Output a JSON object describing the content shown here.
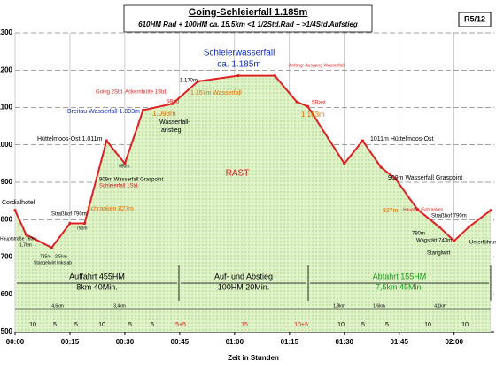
{
  "chart_data": {
    "type": "line",
    "title": "Going-Schleierfall 1.185m",
    "subtitle": "610HM Rad + 100HM   ca. 15,5km     <1 1/2Std.Rad + >1/4Std.Aufstieg",
    "badge": "R5/12",
    "x_label": "Zeit in Stunden",
    "x": [
      0,
      3,
      10,
      15,
      19,
      25,
      30,
      35,
      43,
      50,
      61,
      71,
      77,
      80,
      90,
      95,
      100,
      104,
      110,
      116,
      120,
      124,
      130
    ],
    "series": [
      {
        "color": "#e02020",
        "values": [
          825,
          760,
          725,
          790,
          790,
          1011,
          950,
          1093,
          1110,
          1170,
          1185,
          1185,
          1115,
          1103,
          950,
          1011,
          940,
          909,
          827,
          780,
          743,
          780,
          825
        ]
      }
    ],
    "fill_color": "#dff2c8",
    "xlim": [
      0,
      130
    ],
    "xticks": [
      {
        "value": 0,
        "label": "00:00"
      },
      {
        "value": 15,
        "label": "00:15"
      },
      {
        "value": 30,
        "label": "00:30"
      },
      {
        "value": 45,
        "label": "00:45"
      },
      {
        "value": 60,
        "label": "01:00"
      },
      {
        "value": 75,
        "label": "01:15"
      },
      {
        "value": 90,
        "label": "01:30"
      },
      {
        "value": 105,
        "label": "01:45"
      },
      {
        "value": 120,
        "label": "02:00"
      }
    ],
    "ylim": [
      500,
      1300
    ],
    "yticks": [
      500,
      600,
      700,
      800,
      900,
      1000,
      1100,
      1200,
      1300
    ],
    "grid": true,
    "annotations": [
      "Cordialhotel",
      "Hauptstraße 760m",
      "1,7km",
      "725m",
      "2,5km",
      "Stangelwirt links ab",
      "Straßhof 790m",
      "790m",
      "Schranken 827m",
      "Hüttelmoos-Ost 1.011m",
      "950m",
      "909m Wasserfall  Graspoint",
      "Schleierfall 1Std.",
      "Breitau Wasserfall 1.093m",
      "1.093m",
      "Wasserfall-",
      "anstieg",
      "5Rad",
      "Going 2Std.  Ackernhütte 1Std.",
      "1.170m",
      "1.157m Wasserfall",
      "Schleierwasserfall",
      "ca. 1.185m",
      "Anfang: Ausgang Wasserfall",
      "5Rast",
      "1.183m",
      "1011m Hüttelmoos-Ost",
      "909m Wasserfall Graspoint",
      "827m",
      "Hauptstr./Schranken",
      "Straßhof 790m",
      "780m",
      "Wagstätt 743m",
      "Stanglwirt",
      "Unterführung",
      "RAST"
    ],
    "sections": [
      {
        "title": "Auffahrt 455HM",
        "detail": "8km  40Min."
      },
      {
        "title": "Auf- und Abstieg",
        "detail": "100HM 20Min."
      },
      {
        "title": "Abfahrt 155HM",
        "detail": "7,5km  45Min."
      }
    ],
    "distances": [
      "4,6km",
      "3,4km",
      "1,9km",
      "1,6km",
      "4,1km"
    ],
    "segment_minutes": [
      "10",
      "5",
      "5",
      "10",
      "5",
      "5",
      "5+5",
      "15",
      "10+5",
      "10",
      "5",
      "5",
      "10",
      "10"
    ]
  }
}
